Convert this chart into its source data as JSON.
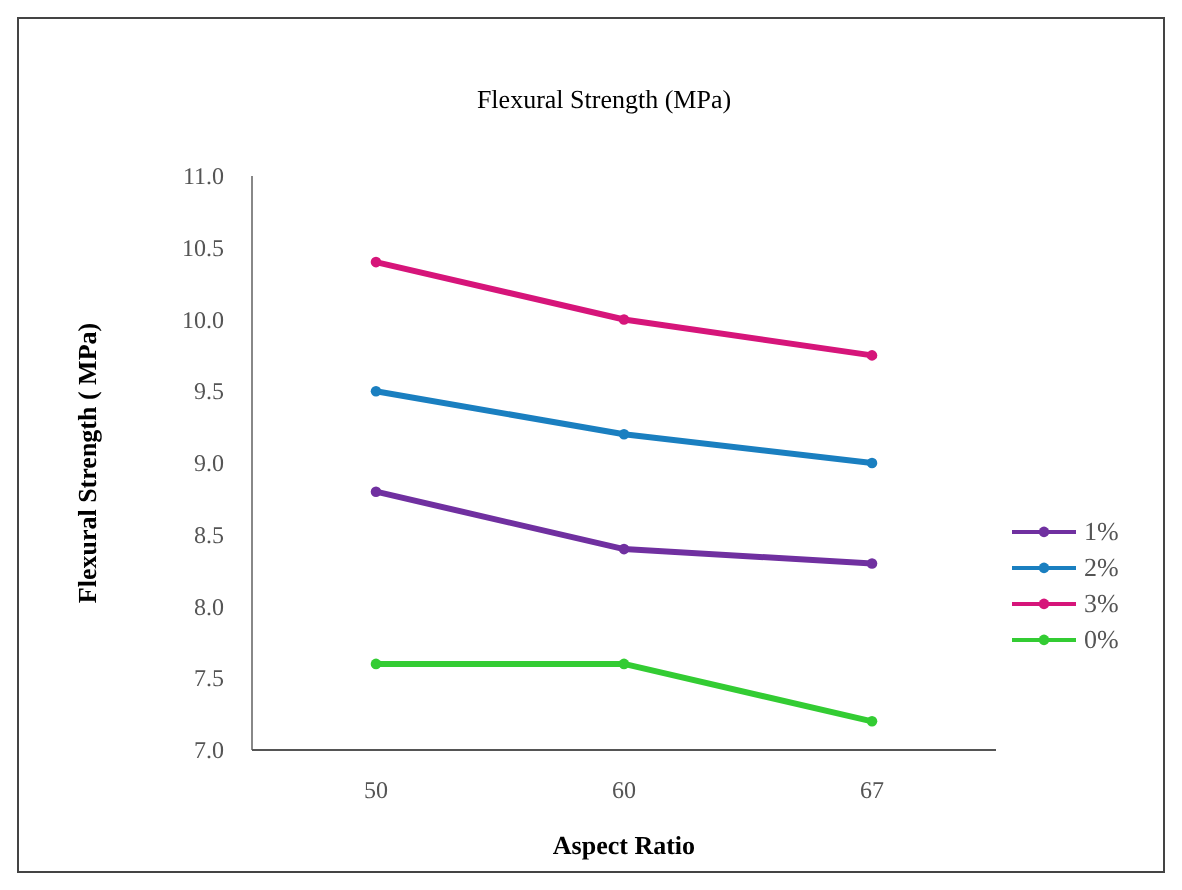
{
  "chart_data": {
    "type": "line",
    "title": "Flexural Strength (MPa)",
    "xlabel": "Aspect Ratio",
    "ylabel": "Flexural Strength ( MPa)",
    "categories": [
      "50",
      "60",
      "67"
    ],
    "ylim": [
      7,
      11
    ],
    "yticks": [
      {
        "value": 7,
        "label": "7.0"
      },
      {
        "value": 7.5,
        "label": "7.5"
      },
      {
        "value": 8,
        "label": "8.0"
      },
      {
        "value": 8.5,
        "label": "8.5"
      },
      {
        "value": 9,
        "label": "9.0"
      },
      {
        "value": 9.5,
        "label": "9.5"
      },
      {
        "value": 10,
        "label": "10.0"
      },
      {
        "value": 10.5,
        "label": "10.5"
      },
      {
        "value": 11,
        "label": "11.0"
      }
    ],
    "grid": false,
    "legend": "right",
    "marker": "circle",
    "series": [
      {
        "name": "1%",
        "color": "#7030a0",
        "values": [
          8.8,
          8.4,
          8.3
        ]
      },
      {
        "name": "2%",
        "color": "#1a7fc0",
        "values": [
          9.5,
          9.2,
          9.0
        ]
      },
      {
        "name": "3%",
        "color": "#d6157a",
        "values": [
          10.4,
          10.0,
          9.75
        ]
      },
      {
        "name": "0%",
        "color": "#33cc33",
        "values": [
          7.6,
          7.6,
          7.2
        ]
      }
    ]
  }
}
